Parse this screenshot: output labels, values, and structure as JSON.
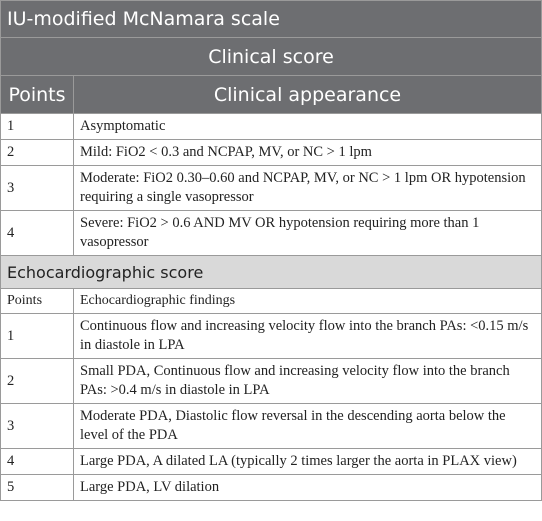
{
  "title": "IU-modified McNamara scale",
  "sections": [
    {
      "title": "Clinical score",
      "header": [
        "Points",
        "Clinical appearance"
      ],
      "rows": [
        [
          1,
          "Asymptomatic"
        ],
        [
          2,
          "Mild: FiO2 < 0.3 and NCPAP, MV, or NC > 1 lpm"
        ],
        [
          3,
          "Moderate: FiO2 0.30–0.60 and NCPAP, MV, or NC > 1 lpm OR hypotension requiring a single vasopressor"
        ],
        [
          4,
          "Severe: FiO2 > 0.6 AND MV OR hypotension requiring more than 1 vasopressor"
        ]
      ]
    },
    {
      "title": "Echocardiographic score",
      "header": [
        "Points",
        "Echocardiographic findings"
      ],
      "rows": [
        [
          1,
          "Continuous flow and increasing velocity flow into the branch PAs: <0.15 m/s in diastole in LPA"
        ],
        [
          2,
          "Small PDA, Continuous flow and increasing velocity flow into the branch PAs: >0.4 m/s in diastole in LPA"
        ],
        [
          3,
          "Moderate PDA, Diastolic flow reversal in the descending aorta below the level of the PDA"
        ],
        [
          4,
          "Large PDA, A dilated LA (typically 2 times larger the aorta in PLAX view)"
        ],
        [
          5,
          "Large PDA, LV dilation"
        ]
      ]
    }
  ]
}
